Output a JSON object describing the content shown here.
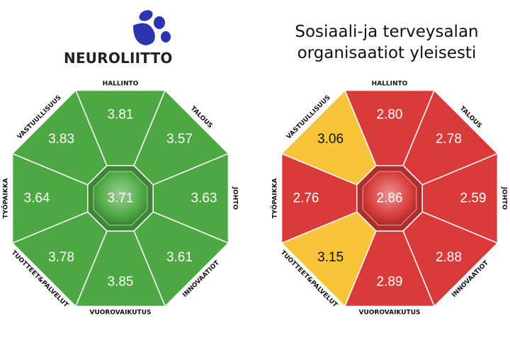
{
  "logo": {
    "text": "NEUROLIITTO",
    "icon": "paw-print-icon",
    "color": "#2b35b0"
  },
  "title": {
    "line1": "Sosiaali-ja terveysalan",
    "line2": "organisaatiot yleisesti"
  },
  "colors": {
    "green": "#4da843",
    "red": "#d93a3a",
    "yellow": "#f7c43a"
  },
  "octagons": [
    {
      "name": "neuroliitto",
      "center": {
        "value": "3.71",
        "color": "green"
      },
      "segments": [
        {
          "label": "HALLINTO",
          "value": "3.81",
          "color": "green"
        },
        {
          "label": "TALOUS",
          "value": "3.57",
          "color": "green"
        },
        {
          "label": "JOHTO",
          "value": "3.63",
          "color": "green"
        },
        {
          "label": "INNOVAATIOT",
          "value": "3.61",
          "color": "green"
        },
        {
          "label": "VUOROVAIKUTUS",
          "value": "3.85",
          "color": "green"
        },
        {
          "label": "TUOTTEET&PALVELUT",
          "value": "3.78",
          "color": "green"
        },
        {
          "label": "TYÖPAIKKA",
          "value": "3.64",
          "color": "green"
        },
        {
          "label": "VASTUULLISUUS",
          "value": "3.83",
          "color": "green"
        }
      ]
    },
    {
      "name": "sote-yleisesti",
      "center": {
        "value": "2.86",
        "color": "red"
      },
      "segments": [
        {
          "label": "HALLINTO",
          "value": "2.80",
          "color": "red"
        },
        {
          "label": "TALOUS",
          "value": "2.78",
          "color": "red"
        },
        {
          "label": "JOHTO",
          "value": "2.59",
          "color": "red"
        },
        {
          "label": "INNOVAATIOT",
          "value": "2.88",
          "color": "red"
        },
        {
          "label": "VUOROVAIKUTUS",
          "value": "2.89",
          "color": "red"
        },
        {
          "label": "TUOTTEET&PALVELUT",
          "value": "3.15",
          "color": "yellow"
        },
        {
          "label": "TYÖPAIKKA",
          "value": "2.76",
          "color": "red"
        },
        {
          "label": "VASTUULLISUUS",
          "value": "3.06",
          "color": "yellow"
        }
      ]
    }
  ]
}
